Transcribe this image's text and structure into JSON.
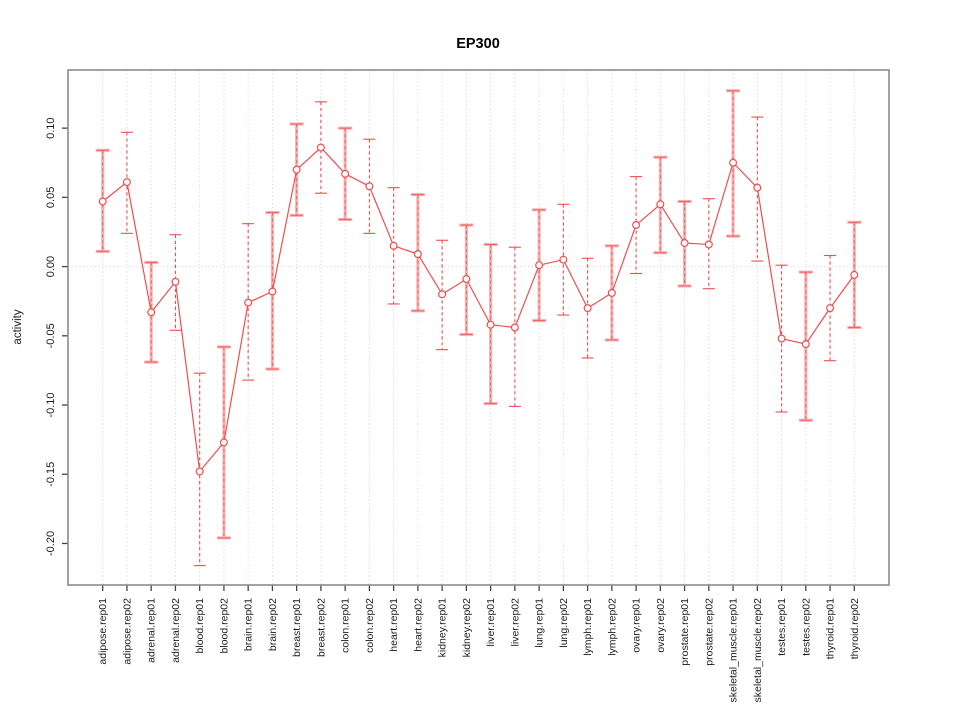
{
  "title": "EP300",
  "axes": {
    "y_label": "activity",
    "y_ticks": [
      "0.10",
      "0.05",
      "0.00",
      "-0.05",
      "-0.10",
      "-0.15",
      "-0.20"
    ],
    "y_tick_values": [
      0.1,
      0.05,
      0.0,
      -0.05,
      -0.1,
      -0.15,
      -0.2
    ]
  },
  "colors": {
    "line": "#ee4e4e",
    "bar_solid": "#f8acac",
    "grid": "#d8d8d8",
    "frame": "#8a8a8a",
    "tick": "#444444",
    "marker_fill": "#ffffff"
  },
  "chart_data": {
    "type": "line",
    "title": "EP300",
    "xlabel": "",
    "ylabel": "activity",
    "ylim": [
      -0.23,
      0.142
    ],
    "grid": "vertical dotted gridlines per category; dotted horizontal line at y=0",
    "legend": "none",
    "categories": [
      "adipose.rep01",
      "adipose.rep02",
      "adrenal.rep01",
      "adrenal.rep02",
      "blood.rep01",
      "blood.rep02",
      "brain.rep01",
      "brain.rep02",
      "breast.rep01",
      "breast.rep02",
      "colon.rep01",
      "colon.rep02",
      "heart.rep01",
      "heart.rep02",
      "kidney.rep01",
      "kidney.rep02",
      "liver.rep01",
      "liver.rep02",
      "lung.rep01",
      "lung.rep02",
      "lymph.rep01",
      "lymph.rep02",
      "ovary.rep01",
      "ovary.rep02",
      "prostate.rep01",
      "prostate.rep02",
      "skeletal_muscle.rep01",
      "skeletal_muscle.rep02",
      "testes.rep01",
      "testes.rep02",
      "thyroid.rep01",
      "thyroid.rep02"
    ],
    "series": [
      {
        "name": "activity",
        "values": [
          0.047,
          0.061,
          -0.033,
          -0.011,
          -0.148,
          -0.127,
          -0.026,
          -0.018,
          0.07,
          0.086,
          0.067,
          0.058,
          0.015,
          0.009,
          -0.02,
          -0.009,
          -0.042,
          -0.044,
          0.001,
          0.005,
          -0.03,
          -0.019,
          0.03,
          0.045,
          0.017,
          0.016,
          0.075,
          0.057,
          -0.052,
          -0.056,
          -0.03,
          -0.006
        ],
        "error_low": [
          0.011,
          0.024,
          -0.069,
          -0.046,
          -0.216,
          -0.196,
          -0.082,
          -0.074,
          0.037,
          0.053,
          0.034,
          0.024,
          -0.027,
          -0.032,
          -0.06,
          -0.049,
          -0.099,
          -0.101,
          -0.039,
          -0.035,
          -0.066,
          -0.053,
          -0.005,
          0.01,
          -0.014,
          -0.016,
          0.022,
          0.004,
          -0.105,
          -0.111,
          -0.068,
          -0.044
        ],
        "error_high": [
          0.084,
          0.097,
          0.003,
          0.023,
          -0.077,
          -0.058,
          0.031,
          0.039,
          0.103,
          0.119,
          0.1,
          0.092,
          0.057,
          0.052,
          0.019,
          0.03,
          0.016,
          0.014,
          0.041,
          0.045,
          0.006,
          0.015,
          0.065,
          0.079,
          0.047,
          0.049,
          0.127,
          0.108,
          0.001,
          -0.004,
          0.008,
          0.032
        ],
        "bar_styles": [
          "solid",
          "dashed",
          "solid",
          "dashed",
          "dashed",
          "solid",
          "dashed",
          "solid",
          "solid",
          "dashed",
          "solid",
          "dashed",
          "dashed",
          "solid",
          "dashed",
          "solid",
          "solid",
          "dashed",
          "solid",
          "dashed",
          "dashed",
          "solid",
          "dashed",
          "solid",
          "solid",
          "dashed",
          "solid",
          "dashed",
          "dashed",
          "solid",
          "dashed",
          "solid"
        ]
      }
    ]
  }
}
